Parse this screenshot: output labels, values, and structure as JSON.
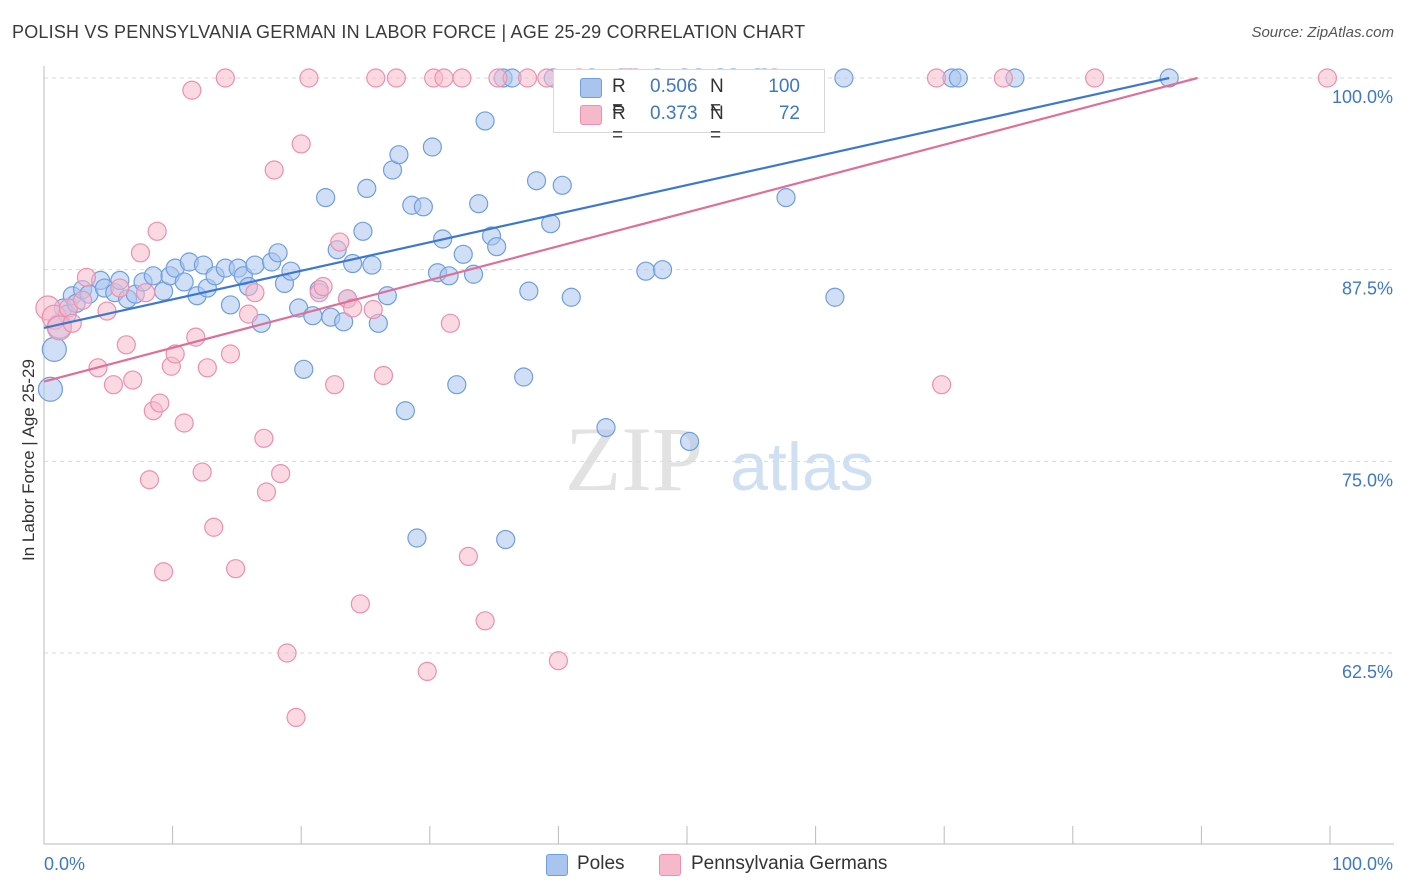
{
  "title": "POLISH VS PENNSYLVANIA GERMAN IN LABOR FORCE | AGE 25-29 CORRELATION CHART",
  "source": "Source: ZipAtlas.com",
  "watermark": {
    "zip": "ZIP",
    "atlas": "atlas"
  },
  "legend": {
    "series": [
      {
        "r_label": "R =",
        "r_value": "0.506",
        "n_label": "N =",
        "n_value": "100"
      },
      {
        "r_label": "R =",
        "r_value": "0.373",
        "n_label": "N =",
        "n_value": "72"
      }
    ]
  },
  "colors": {
    "poles_fill": "#a9c5ee",
    "poles_stroke": "#6f9ee0",
    "poles_line": "#3d78d0",
    "pa_fill": "#f6b9cc",
    "pa_stroke": "#ee8fae",
    "pa_line": "#e06f98",
    "tick_label": "#3d78c8",
    "grid": "#d9d9d9"
  },
  "chart_data": {
    "type": "scatter",
    "title": "POLISH VS PENNSYLVANIA GERMAN IN LABOR FORCE | AGE 25-29 CORRELATION CHART",
    "xlabel": "",
    "ylabel": "In Labor Force | Age 25-29",
    "xlim": [
      0,
      100
    ],
    "ylim": [
      50,
      102
    ],
    "x_tick_labels": [
      "0.0%",
      "100.0%"
    ],
    "y_ticks": [
      62.5,
      75.0,
      87.5,
      100.0
    ],
    "y_tick_labels": [
      "62.5%",
      "75.0%",
      "87.5%",
      "100.0%"
    ],
    "grid": true,
    "legend_position": "bottom-center",
    "series": [
      {
        "name": "Poles",
        "trend": {
          "x": [
            0,
            87.5
          ],
          "y": [
            83.7,
            100.0
          ]
        },
        "points": [
          {
            "x": 0.5,
            "y": 79.7
          },
          {
            "x": 0.8,
            "y": 82.3
          },
          {
            "x": 1.2,
            "y": 83.8
          },
          {
            "x": 1.5,
            "y": 85.0
          },
          {
            "x": 1.8,
            "y": 84.6
          },
          {
            "x": 2.2,
            "y": 85.8
          },
          {
            "x": 2.5,
            "y": 85.3
          },
          {
            "x": 3.0,
            "y": 86.2
          },
          {
            "x": 3.5,
            "y": 85.9
          },
          {
            "x": 4.4,
            "y": 86.8
          },
          {
            "x": 4.7,
            "y": 86.3
          },
          {
            "x": 5.5,
            "y": 86.0
          },
          {
            "x": 5.9,
            "y": 86.8
          },
          {
            "x": 6.5,
            "y": 85.6
          },
          {
            "x": 7.1,
            "y": 85.9
          },
          {
            "x": 7.7,
            "y": 86.7
          },
          {
            "x": 8.5,
            "y": 87.1
          },
          {
            "x": 9.3,
            "y": 86.1
          },
          {
            "x": 9.8,
            "y": 87.1
          },
          {
            "x": 10.2,
            "y": 87.6
          },
          {
            "x": 10.9,
            "y": 86.7
          },
          {
            "x": 11.3,
            "y": 88.0
          },
          {
            "x": 11.9,
            "y": 85.8
          },
          {
            "x": 12.4,
            "y": 87.8
          },
          {
            "x": 12.7,
            "y": 86.3
          },
          {
            "x": 13.3,
            "y": 87.1
          },
          {
            "x": 14.1,
            "y": 87.6
          },
          {
            "x": 14.5,
            "y": 85.2
          },
          {
            "x": 15.1,
            "y": 87.6
          },
          {
            "x": 15.5,
            "y": 87.1
          },
          {
            "x": 15.9,
            "y": 86.4
          },
          {
            "x": 16.4,
            "y": 87.8
          },
          {
            "x": 16.9,
            "y": 84.0
          },
          {
            "x": 17.7,
            "y": 88.0
          },
          {
            "x": 18.2,
            "y": 88.6
          },
          {
            "x": 18.7,
            "y": 86.6
          },
          {
            "x": 19.2,
            "y": 87.4
          },
          {
            "x": 19.8,
            "y": 85.0
          },
          {
            "x": 20.2,
            "y": 81.0
          },
          {
            "x": 20.9,
            "y": 84.5
          },
          {
            "x": 21.4,
            "y": 86.2
          },
          {
            "x": 21.9,
            "y": 92.2
          },
          {
            "x": 22.3,
            "y": 84.4
          },
          {
            "x": 22.8,
            "y": 88.8
          },
          {
            "x": 23.3,
            "y": 84.1
          },
          {
            "x": 23.6,
            "y": 85.6
          },
          {
            "x": 24.0,
            "y": 87.9
          },
          {
            "x": 24.8,
            "y": 90.0
          },
          {
            "x": 25.1,
            "y": 92.8
          },
          {
            "x": 25.5,
            "y": 87.8
          },
          {
            "x": 26.0,
            "y": 84.0
          },
          {
            "x": 26.7,
            "y": 85.8
          },
          {
            "x": 27.1,
            "y": 94.0
          },
          {
            "x": 27.6,
            "y": 95.0
          },
          {
            "x": 28.1,
            "y": 78.3
          },
          {
            "x": 28.6,
            "y": 91.7
          },
          {
            "x": 29.0,
            "y": 70.0
          },
          {
            "x": 29.5,
            "y": 91.6
          },
          {
            "x": 30.2,
            "y": 95.5
          },
          {
            "x": 30.6,
            "y": 87.3
          },
          {
            "x": 31.0,
            "y": 89.5
          },
          {
            "x": 31.5,
            "y": 87.1
          },
          {
            "x": 32.1,
            "y": 80.0
          },
          {
            "x": 32.6,
            "y": 88.5
          },
          {
            "x": 33.4,
            "y": 87.2
          },
          {
            "x": 33.8,
            "y": 91.8
          },
          {
            "x": 34.3,
            "y": 97.2
          },
          {
            "x": 34.8,
            "y": 89.7
          },
          {
            "x": 35.2,
            "y": 89.0
          },
          {
            "x": 35.7,
            "y": 100.0
          },
          {
            "x": 35.9,
            "y": 69.9
          },
          {
            "x": 36.4,
            "y": 100.0
          },
          {
            "x": 37.3,
            "y": 80.5
          },
          {
            "x": 37.7,
            "y": 86.1
          },
          {
            "x": 38.3,
            "y": 93.3
          },
          {
            "x": 39.4,
            "y": 90.5
          },
          {
            "x": 39.6,
            "y": 100.0
          },
          {
            "x": 40.3,
            "y": 93.0
          },
          {
            "x": 41.0,
            "y": 85.7
          },
          {
            "x": 43.7,
            "y": 77.2
          },
          {
            "x": 44.9,
            "y": 100.0
          },
          {
            "x": 45.6,
            "y": 100.0
          },
          {
            "x": 46.8,
            "y": 87.4
          },
          {
            "x": 47.7,
            "y": 100.0
          },
          {
            "x": 48.1,
            "y": 87.5
          },
          {
            "x": 49.8,
            "y": 100.0
          },
          {
            "x": 50.2,
            "y": 76.3
          },
          {
            "x": 50.9,
            "y": 100.0
          },
          {
            "x": 52.6,
            "y": 100.0
          },
          {
            "x": 55.5,
            "y": 100.0
          },
          {
            "x": 56.0,
            "y": 100.0
          },
          {
            "x": 57.7,
            "y": 92.2
          },
          {
            "x": 61.5,
            "y": 85.7
          },
          {
            "x": 62.2,
            "y": 100.0
          },
          {
            "x": 70.6,
            "y": 100.0
          },
          {
            "x": 71.1,
            "y": 100.0
          },
          {
            "x": 75.5,
            "y": 100.0
          },
          {
            "x": 87.5,
            "y": 100.0
          },
          {
            "x": 42.6,
            "y": 100.0
          },
          {
            "x": 53.6,
            "y": 100.0
          }
        ]
      },
      {
        "name": "Pennsylvania Germans",
        "trend": {
          "x": [
            0,
            89.7
          ],
          "y": [
            80.2,
            100.0
          ]
        },
        "points": [
          {
            "x": 0.3,
            "y": 85.0
          },
          {
            "x": 0.8,
            "y": 84.4
          },
          {
            "x": 1.2,
            "y": 83.7
          },
          {
            "x": 1.9,
            "y": 85.0
          },
          {
            "x": 2.2,
            "y": 84.0
          },
          {
            "x": 3.0,
            "y": 85.5
          },
          {
            "x": 3.3,
            "y": 87.0
          },
          {
            "x": 4.2,
            "y": 81.1
          },
          {
            "x": 4.9,
            "y": 84.8
          },
          {
            "x": 5.4,
            "y": 80.0
          },
          {
            "x": 5.9,
            "y": 86.3
          },
          {
            "x": 6.4,
            "y": 82.6
          },
          {
            "x": 6.9,
            "y": 80.3
          },
          {
            "x": 7.5,
            "y": 88.6
          },
          {
            "x": 7.9,
            "y": 86.0
          },
          {
            "x": 8.2,
            "y": 73.8
          },
          {
            "x": 8.5,
            "y": 78.3
          },
          {
            "x": 8.8,
            "y": 90.0
          },
          {
            "x": 9.0,
            "y": 78.8
          },
          {
            "x": 9.3,
            "y": 67.8
          },
          {
            "x": 9.9,
            "y": 81.2
          },
          {
            "x": 10.2,
            "y": 82.0
          },
          {
            "x": 10.9,
            "y": 77.5
          },
          {
            "x": 11.5,
            "y": 99.2
          },
          {
            "x": 11.8,
            "y": 83.1
          },
          {
            "x": 12.3,
            "y": 74.3
          },
          {
            "x": 12.7,
            "y": 81.1
          },
          {
            "x": 13.2,
            "y": 70.7
          },
          {
            "x": 14.1,
            "y": 100.0
          },
          {
            "x": 14.5,
            "y": 82.0
          },
          {
            "x": 14.9,
            "y": 68.0
          },
          {
            "x": 15.9,
            "y": 84.6
          },
          {
            "x": 16.4,
            "y": 86.0
          },
          {
            "x": 17.1,
            "y": 76.5
          },
          {
            "x": 17.3,
            "y": 73.0
          },
          {
            "x": 17.9,
            "y": 94.0
          },
          {
            "x": 18.4,
            "y": 74.2
          },
          {
            "x": 18.9,
            "y": 62.5
          },
          {
            "x": 19.6,
            "y": 58.3
          },
          {
            "x": 20.0,
            "y": 95.7
          },
          {
            "x": 20.6,
            "y": 100.0
          },
          {
            "x": 21.4,
            "y": 86.0
          },
          {
            "x": 21.7,
            "y": 86.4
          },
          {
            "x": 22.6,
            "y": 80.0
          },
          {
            "x": 23.0,
            "y": 89.3
          },
          {
            "x": 23.6,
            "y": 85.6
          },
          {
            "x": 24.0,
            "y": 85.0
          },
          {
            "x": 24.6,
            "y": 65.7
          },
          {
            "x": 25.6,
            "y": 84.9
          },
          {
            "x": 25.8,
            "y": 100.0
          },
          {
            "x": 26.4,
            "y": 80.6
          },
          {
            "x": 27.4,
            "y": 100.0
          },
          {
            "x": 29.8,
            "y": 61.3
          },
          {
            "x": 30.3,
            "y": 100.0
          },
          {
            "x": 31.1,
            "y": 100.0
          },
          {
            "x": 31.6,
            "y": 84.0
          },
          {
            "x": 32.5,
            "y": 100.0
          },
          {
            "x": 33.0,
            "y": 68.8
          },
          {
            "x": 34.3,
            "y": 64.6
          },
          {
            "x": 35.3,
            "y": 100.0
          },
          {
            "x": 37.6,
            "y": 100.0
          },
          {
            "x": 39.1,
            "y": 100.0
          },
          {
            "x": 40.0,
            "y": 62.0
          },
          {
            "x": 41.6,
            "y": 100.0
          },
          {
            "x": 45.2,
            "y": 100.0
          },
          {
            "x": 46.0,
            "y": 100.0
          },
          {
            "x": 56.8,
            "y": 100.0
          },
          {
            "x": 69.4,
            "y": 100.0
          },
          {
            "x": 69.8,
            "y": 80.0
          },
          {
            "x": 74.6,
            "y": 100.0
          },
          {
            "x": 81.7,
            "y": 100.0
          },
          {
            "x": 99.8,
            "y": 100.0
          }
        ]
      }
    ],
    "bottom_legend": [
      "Poles",
      "Pennsylvania Germans"
    ]
  }
}
